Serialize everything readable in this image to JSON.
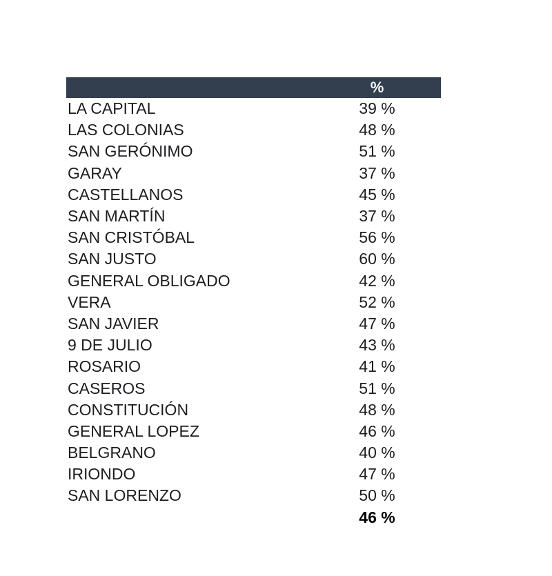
{
  "page": {
    "background_color": "#ffffff",
    "text_color": "#1b1d21"
  },
  "table": {
    "header": {
      "value_label": "%",
      "bg_color": "#333E4F",
      "text_color": "#f7f7f7"
    },
    "rows": [
      {
        "name": "LA CAPITAL",
        "value": "39 %"
      },
      {
        "name": "LAS COLONIAS",
        "value": "48 %"
      },
      {
        "name": "SAN GERÓNIMO",
        "value": "51 %"
      },
      {
        "name": "GARAY",
        "value": "37 %"
      },
      {
        "name": "CASTELLANOS",
        "value": "45 %"
      },
      {
        "name": "SAN MARTÍN",
        "value": "37 %"
      },
      {
        "name": "SAN CRISTÓBAL",
        "value": "56 %"
      },
      {
        "name": "SAN JUSTO",
        "value": "60 %"
      },
      {
        "name": "GENERAL OBLIGADO",
        "value": "42 %"
      },
      {
        "name": "VERA",
        "value": "52 %"
      },
      {
        "name": "SAN JAVIER",
        "value": "47 %"
      },
      {
        "name": "9 DE JULIO",
        "value": "43 %"
      },
      {
        "name": "ROSARIO",
        "value": "41 %"
      },
      {
        "name": "CASEROS",
        "value": "51 %"
      },
      {
        "name": "CONSTITUCIÓN",
        "value": "48 %"
      },
      {
        "name": "GENERAL LOPEZ",
        "value": "46 %"
      },
      {
        "name": "BELGRANO",
        "value": "40 %"
      },
      {
        "name": "IRIONDO",
        "value": "47 %"
      },
      {
        "name": "SAN LORENZO",
        "value": "50 %"
      }
    ],
    "total": {
      "name": "",
      "value": "46 %"
    }
  }
}
